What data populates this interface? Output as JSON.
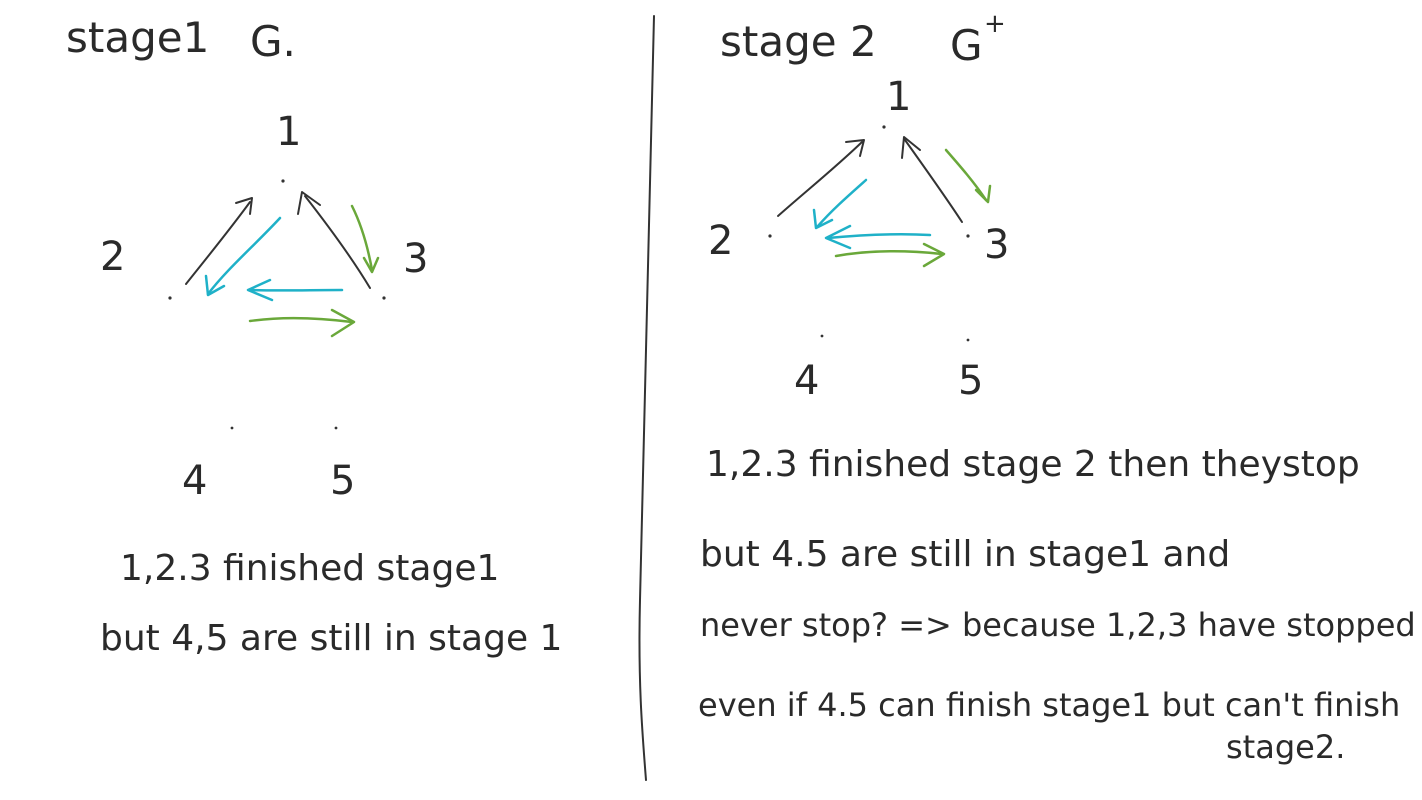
{
  "stage1": {
    "title": "stage1",
    "graph_label": "G.",
    "nodes": [
      "1",
      "2",
      "3",
      "4",
      "5"
    ],
    "note_line1": "1,2.3 finished stage1",
    "note_line2": "but 4,5 are still in stage 1"
  },
  "stage2": {
    "title": "stage 2",
    "graph_label": "G",
    "graph_sup": "+",
    "nodes": [
      "1",
      "2",
      "3",
      "4",
      "5"
    ],
    "note_line1": "1,2.3 finished stage 2 then theystop",
    "note_line2": "but 4.5 are still in stage1 and",
    "note_line3": "never stop? => because 1,2,3 have stopped",
    "note_line4": "even if 4.5 can finish stage1 but can't finish",
    "note_line5": "stage2."
  },
  "colors": {
    "ink": "#333333",
    "cyan": "#1fb1c8",
    "green": "#6aa83a"
  }
}
